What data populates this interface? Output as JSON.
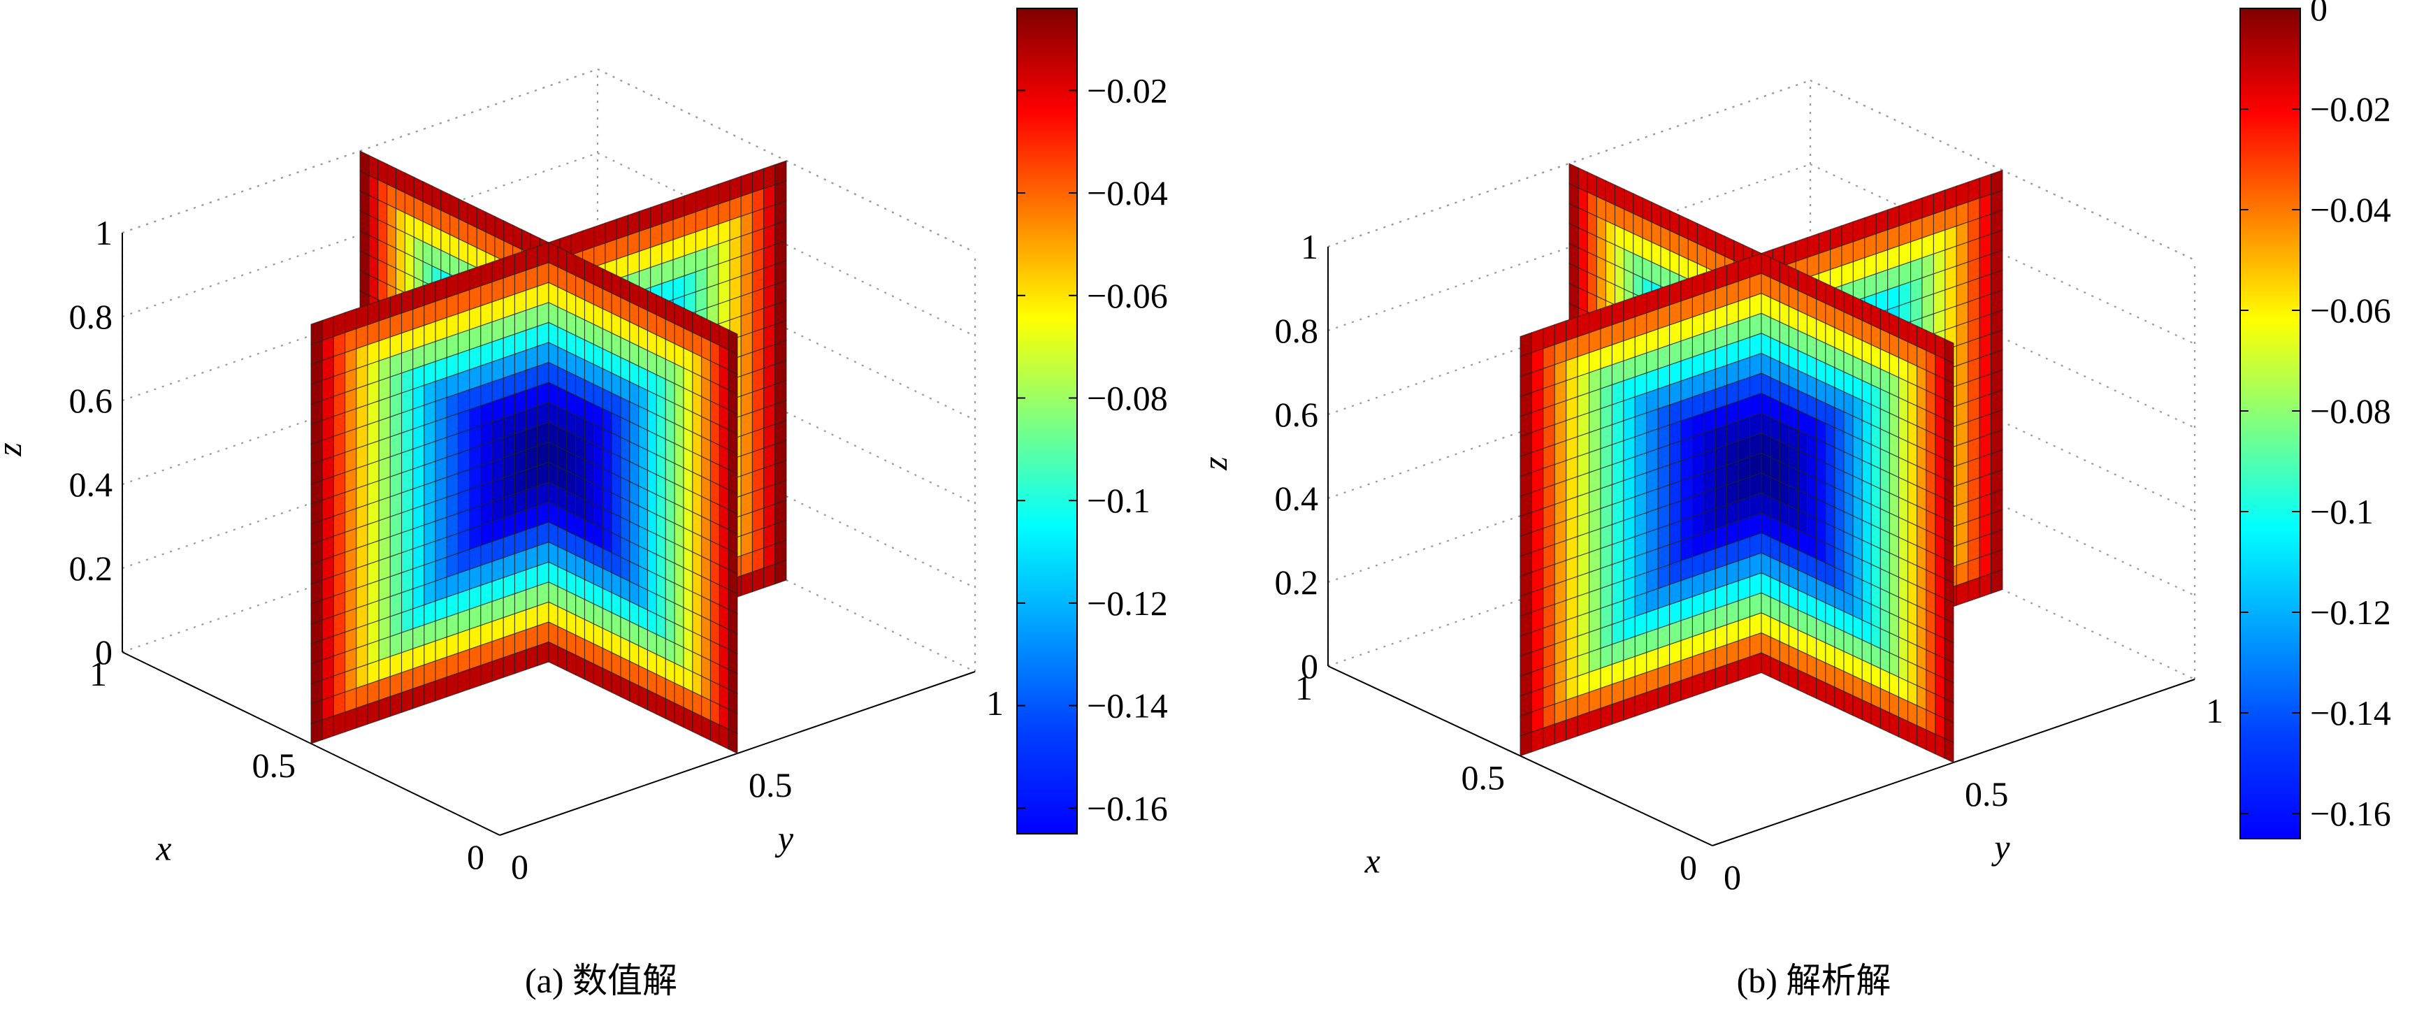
{
  "chart_data": [
    {
      "type": "heatmap",
      "variant": "3d-slice",
      "caption": "(a) 数值解",
      "xlabel": "x",
      "ylabel": "y",
      "zlabel": "z",
      "x_ticks": [
        "0",
        "0.5",
        "1"
      ],
      "y_ticks": [
        "0",
        "0.5",
        "1"
      ],
      "z_ticks": [
        "0",
        "0.2",
        "0.4",
        "0.6",
        "0.8",
        "1"
      ],
      "xlim": [
        0,
        1
      ],
      "ylim": [
        0,
        1
      ],
      "zlim": [
        0,
        1
      ],
      "slices": [
        "x = 0.5",
        "y = 0.5"
      ],
      "grid": 21,
      "grid_lines": true,
      "colormap": "jet",
      "center_value": -0.162,
      "color_range": [
        -0.165,
        -0.004
      ],
      "colorbar_ticks": [
        "-0.02",
        "-0.04",
        "-0.06",
        "-0.08",
        "-0.1",
        "-0.12",
        "-0.14",
        "-0.16"
      ],
      "colorbar_values": [
        -0.02,
        -0.04,
        -0.06,
        -0.08,
        -0.1,
        -0.12,
        -0.14,
        -0.16
      ]
    },
    {
      "type": "heatmap",
      "variant": "3d-slice",
      "caption": "(b) 解析解",
      "xlabel": "x",
      "ylabel": "y",
      "zlabel": "z",
      "x_ticks": [
        "0",
        "0.5",
        "1"
      ],
      "y_ticks": [
        "0",
        "0.5",
        "1"
      ],
      "z_ticks": [
        "0",
        "0.2",
        "0.4",
        "0.6",
        "0.8",
        "1"
      ],
      "xlim": [
        0,
        1
      ],
      "ylim": [
        0,
        1
      ],
      "zlim": [
        0,
        1
      ],
      "slices": [
        "x = 0.5",
        "y = 0.5"
      ],
      "grid": 21,
      "grid_lines": true,
      "colormap": "jet",
      "center_value": -0.162,
      "color_range": [
        -0.165,
        0
      ],
      "colorbar_ticks": [
        "0",
        "-0.02",
        "-0.04",
        "-0.06",
        "-0.08",
        "-0.1",
        "-0.12",
        "-0.14",
        "-0.16"
      ],
      "colorbar_values": [
        0,
        -0.02,
        -0.04,
        -0.06,
        -0.08,
        -0.1,
        -0.12,
        -0.14,
        -0.16
      ]
    }
  ]
}
